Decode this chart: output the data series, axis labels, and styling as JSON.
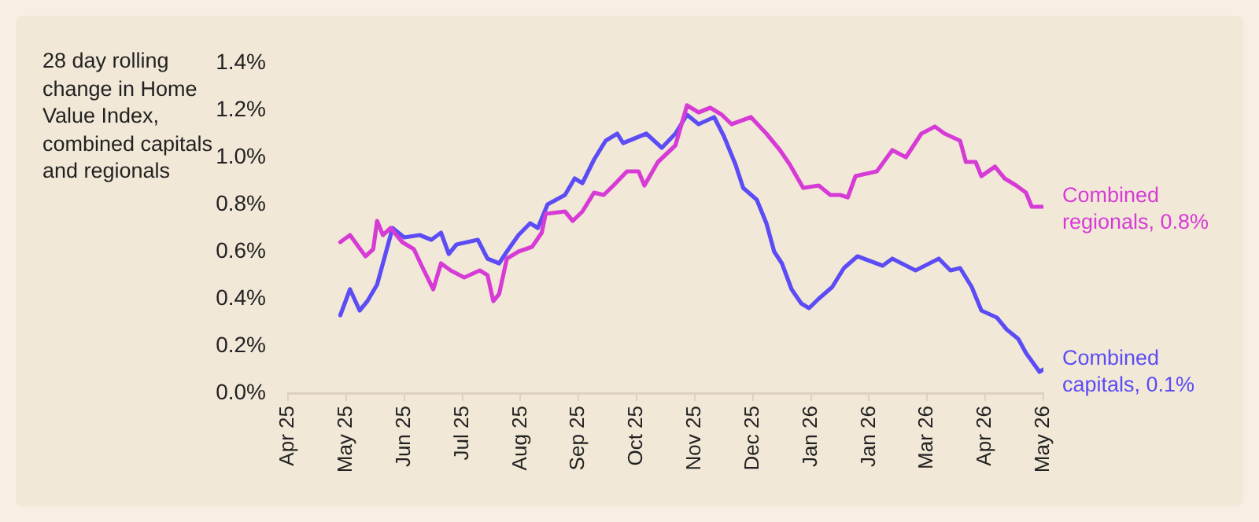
{
  "chart_data": {
    "type": "line",
    "ylabel": "28 day rolling change in Home Value Index, combined capitals and regionals",
    "xlim": [
      "2025-04-06",
      "2026-05-01"
    ],
    "xticks": [
      {
        "value": "2025-04-06",
        "label": "Apr 25"
      },
      {
        "value": "2025-05-06",
        "label": "May 25"
      },
      {
        "value": "2025-06-05",
        "label": "Jun 25"
      },
      {
        "value": "2025-07-05",
        "label": "Jul 25"
      },
      {
        "value": "2025-08-04",
        "label": "Aug 25"
      },
      {
        "value": "2025-09-03",
        "label": "Sep 25"
      },
      {
        "value": "2025-10-03",
        "label": "Oct 25"
      },
      {
        "value": "2025-11-02",
        "label": "Nov 25"
      },
      {
        "value": "2025-12-02",
        "label": "Dec 25"
      },
      {
        "value": "2026-01-01",
        "label": "Jan 26"
      },
      {
        "value": "2026-01-31",
        "label": "Jan 26"
      },
      {
        "value": "2026-03-02",
        "label": "Mar 26"
      },
      {
        "value": "2026-04-01",
        "label": "Apr 26"
      },
      {
        "value": "2026-05-01",
        "label": "May 26"
      }
    ],
    "ylim": [
      0,
      1.4
    ],
    "yticks": [
      {
        "value": 0,
        "label": "0.0%"
      },
      {
        "value": 0.2,
        "label": "0.2%"
      },
      {
        "value": 0.4,
        "label": "0.4%"
      },
      {
        "value": 0.6,
        "label": "0.6%"
      },
      {
        "value": 0.8,
        "label": "0.8%"
      },
      {
        "value": 1.0,
        "label": "1.0%"
      },
      {
        "value": 1.2,
        "label": "1.2%"
      },
      {
        "value": 1.4,
        "label": "1.4%"
      }
    ],
    "grid": false,
    "legend": false,
    "marker": "none",
    "line_style": "solid",
    "series": [
      {
        "name": "Combined regionals, 0.8%",
        "color": "#d63bd6",
        "x": [
          "2025-05-03",
          "2025-05-08",
          "2025-05-16",
          "2025-05-20",
          "2025-05-22",
          "2025-05-25",
          "2025-05-29",
          "2025-06-04",
          "2025-06-10",
          "2025-06-14",
          "2025-06-20",
          "2025-06-24",
          "2025-06-29",
          "2025-07-06",
          "2025-07-14",
          "2025-07-18",
          "2025-07-21",
          "2025-07-24",
          "2025-07-28",
          "2025-08-03",
          "2025-08-10",
          "2025-08-15",
          "2025-08-17",
          "2025-08-27",
          "2025-08-31",
          "2025-09-05",
          "2025-09-11",
          "2025-09-16",
          "2025-09-21",
          "2025-09-28",
          "2025-10-04",
          "2025-10-07",
          "2025-10-14",
          "2025-10-23",
          "2025-10-29",
          "2025-11-04",
          "2025-11-10",
          "2025-11-16",
          "2025-11-21",
          "2025-12-01",
          "2025-12-09",
          "2025-12-16",
          "2025-12-21",
          "2025-12-28",
          "2026-01-05",
          "2026-01-11",
          "2026-01-16",
          "2026-01-20",
          "2026-01-24",
          "2026-02-04",
          "2026-02-12",
          "2026-02-19",
          "2026-02-27",
          "2026-03-06",
          "2026-03-11",
          "2026-03-19",
          "2026-03-22",
          "2026-03-27",
          "2026-03-30",
          "2026-04-06",
          "2026-04-11",
          "2026-04-17",
          "2026-04-22",
          "2026-04-25",
          "2026-05-01"
        ],
        "values": [
          0.64,
          0.67,
          0.58,
          0.61,
          0.73,
          0.67,
          0.7,
          0.64,
          0.61,
          0.54,
          0.44,
          0.55,
          0.52,
          0.49,
          0.52,
          0.5,
          0.39,
          0.42,
          0.57,
          0.6,
          0.62,
          0.68,
          0.76,
          0.77,
          0.73,
          0.77,
          0.85,
          0.84,
          0.88,
          0.94,
          0.94,
          0.88,
          0.98,
          1.05,
          1.22,
          1.19,
          1.21,
          1.18,
          1.14,
          1.17,
          1.1,
          1.03,
          0.97,
          0.87,
          0.88,
          0.84,
          0.84,
          0.83,
          0.92,
          0.94,
          1.03,
          1.0,
          1.1,
          1.13,
          1.1,
          1.07,
          0.98,
          0.98,
          0.92,
          0.96,
          0.91,
          0.88,
          0.85,
          0.79,
          0.79
        ]
      },
      {
        "name": "Combined capitals, 0.1%",
        "color": "#5b4cf5",
        "x": [
          "2025-05-03",
          "2025-05-08",
          "2025-05-13",
          "2025-05-17",
          "2025-05-22",
          "2025-05-26",
          "2025-05-30",
          "2025-06-05",
          "2025-06-13",
          "2025-06-19",
          "2025-06-24",
          "2025-06-28",
          "2025-07-02",
          "2025-07-13",
          "2025-07-18",
          "2025-07-24",
          "2025-07-28",
          "2025-08-03",
          "2025-08-09",
          "2025-08-13",
          "2025-08-18",
          "2025-08-27",
          "2025-09-01",
          "2025-09-05",
          "2025-09-11",
          "2025-09-17",
          "2025-09-23",
          "2025-09-26",
          "2025-10-08",
          "2025-10-16",
          "2025-10-23",
          "2025-10-29",
          "2025-11-04",
          "2025-11-12",
          "2025-11-17",
          "2025-11-23",
          "2025-11-27",
          "2025-12-04",
          "2025-12-09",
          "2025-12-13",
          "2025-12-17",
          "2025-12-22",
          "2025-12-27",
          "2025-12-31",
          "2026-01-05",
          "2026-01-12",
          "2026-01-18",
          "2026-01-25",
          "2026-02-07",
          "2026-02-12",
          "2026-02-24",
          "2026-03-08",
          "2026-03-14",
          "2026-03-19",
          "2026-03-25",
          "2026-03-30",
          "2026-04-07",
          "2026-04-12",
          "2026-04-18",
          "2026-04-22",
          "2026-04-29",
          "2026-05-01"
        ],
        "values": [
          0.33,
          0.44,
          0.35,
          0.39,
          0.46,
          0.58,
          0.7,
          0.66,
          0.67,
          0.65,
          0.68,
          0.59,
          0.63,
          0.65,
          0.57,
          0.55,
          0.6,
          0.67,
          0.72,
          0.7,
          0.8,
          0.84,
          0.91,
          0.89,
          0.99,
          1.07,
          1.1,
          1.06,
          1.1,
          1.04,
          1.1,
          1.18,
          1.14,
          1.17,
          1.09,
          0.97,
          0.87,
          0.82,
          0.72,
          0.6,
          0.55,
          0.44,
          0.38,
          0.36,
          0.4,
          0.45,
          0.53,
          0.58,
          0.54,
          0.57,
          0.52,
          0.57,
          0.52,
          0.53,
          0.45,
          0.35,
          0.32,
          0.27,
          0.23,
          0.17,
          0.09,
          0.1
        ]
      }
    ]
  }
}
